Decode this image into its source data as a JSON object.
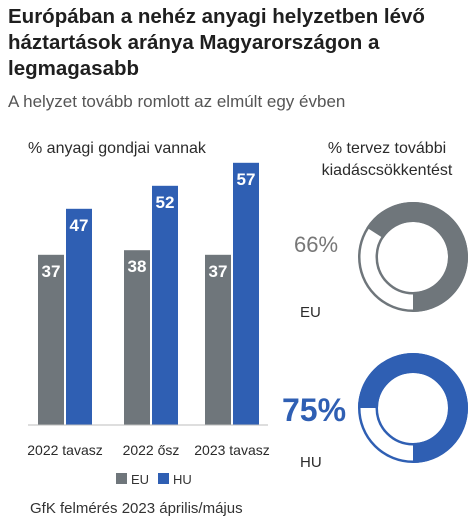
{
  "title": "Európában a nehéz anyagi helyzetben lévő háztartások aránya Magyarországon a legmagasabb",
  "subtitle": "A helyzet tovább romlott az elmúlt egy évben",
  "source": "GfK felmérés 2023 április/május",
  "colors": {
    "eu": "#6f767b",
    "hu": "#2f5fb3",
    "ring_track": "#ffffff",
    "ring_border": "#6f767b"
  },
  "chart_data": [
    {
      "type": "bar",
      "title": "% anyagi gondjai vannak",
      "categories": [
        "2022 tavasz",
        "2022 ősz",
        "2023 tavasz"
      ],
      "series": [
        {
          "name": "EU",
          "values": [
            37,
            38,
            37
          ]
        },
        {
          "name": "HU",
          "values": [
            47,
            52,
            57
          ]
        }
      ],
      "legend": "bottom",
      "grid": false
    },
    {
      "type": "pie",
      "title": "% tervez további kiadáscsökkentést",
      "categories": [
        "EU",
        "HU"
      ],
      "values": [
        66,
        75
      ],
      "labels": [
        "66%",
        "75%"
      ]
    }
  ]
}
